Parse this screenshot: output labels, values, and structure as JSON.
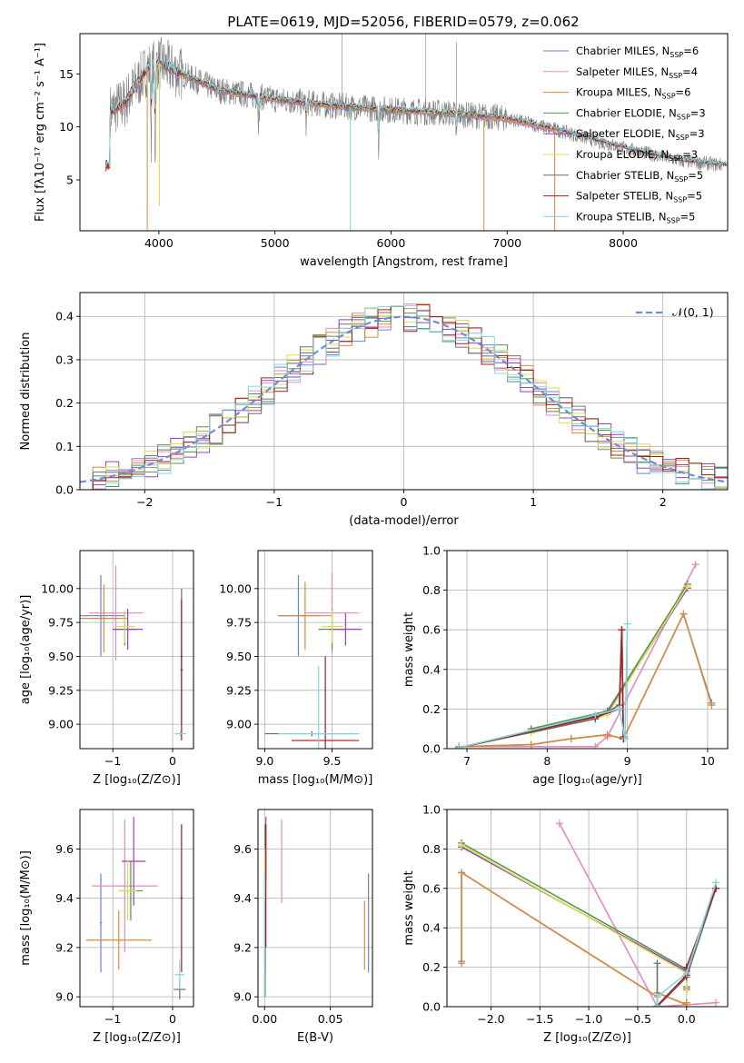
{
  "figure": {
    "title": "PLATE=0619, MJD=52056, FIBERID=0579, z=0.062"
  },
  "models": [
    {
      "name": "Chabrier MILES, N_SSP=6",
      "label_main": "Chabrier MILES, N",
      "label_sub": "SSP",
      "label_tail": "=6",
      "color": "#6b83cc"
    },
    {
      "name": "Salpeter MILES, N_SSP=4",
      "label_main": "Salpeter MILES, N",
      "label_sub": "SSP",
      "label_tail": "=4",
      "color": "#e58ac1"
    },
    {
      "name": "Kroupa MILES, N_SSP=6",
      "label_main": "Kroupa MILES, N",
      "label_sub": "SSP",
      "label_tail": "=6",
      "color": "#d98c3a"
    },
    {
      "name": "Chabrier ELODIE, N_SSP=3",
      "label_main": "Chabrier ELODIE, N",
      "label_sub": "SSP",
      "label_tail": "=3",
      "color": "#4f9a4a"
    },
    {
      "name": "Salpeter ELODIE, N_SSP=3",
      "label_main": "Salpeter ELODIE, N",
      "label_sub": "SSP",
      "label_tail": "=3",
      "color": "#9b3fc0"
    },
    {
      "name": "Kroupa ELODIE, N_SSP=3",
      "label_main": "Kroupa ELODIE, N",
      "label_sub": "SSP",
      "label_tail": "=3",
      "color": "#d6e34a"
    },
    {
      "name": "Chabrier STELIB, N_SSP=5",
      "label_main": "Chabrier STELIB, N",
      "label_sub": "SSP",
      "label_tail": "=5",
      "color": "#6e6e6e"
    },
    {
      "name": "Salpeter STELIB, N_SSP=5",
      "label_main": "Salpeter STELIB, N",
      "label_sub": "SSP",
      "label_tail": "=5",
      "color": "#a81c1c"
    },
    {
      "name": "Kroupa STELIB, N_SSP=5",
      "label_main": "Kroupa STELIB, N",
      "label_sub": "SSP",
      "label_tail": "=5",
      "color": "#7fd8df"
    }
  ],
  "chart_data": [
    {
      "id": "spectrum",
      "type": "line",
      "xlabel": "wavelength [Angstrom, rest frame]",
      "ylabel": "Flux [fλ10⁻¹⁷ erg cm⁻² s⁻¹ A⁻¹]",
      "xlim": [
        3320,
        8900
      ],
      "ylim": [
        0.2,
        18.8
      ],
      "xticks": [
        4000,
        5000,
        6000,
        7000,
        8000
      ],
      "yticks": [
        5,
        10,
        15
      ],
      "grid": false,
      "legend": "top-right",
      "data_color": "#808080",
      "continuum_knots": [
        [
          3580,
          11.5
        ],
        [
          3700,
          12.2
        ],
        [
          3900,
          15.5
        ],
        [
          4000,
          16.0
        ],
        [
          4200,
          15.0
        ],
        [
          4500,
          13.5
        ],
        [
          5000,
          12.6
        ],
        [
          5500,
          12.0
        ],
        [
          6000,
          11.6
        ],
        [
          6500,
          11.3
        ],
        [
          7000,
          10.8
        ],
        [
          7400,
          9.8
        ],
        [
          8000,
          8.0
        ],
        [
          8500,
          6.8
        ],
        [
          8850,
          6.4
        ]
      ],
      "absorption_features": [
        [
          3934,
          6.5
        ],
        [
          3968,
          8.0
        ],
        [
          4861,
          3.0
        ],
        [
          5270,
          2.0
        ],
        [
          5893,
          3.5
        ],
        [
          6563,
          2.5
        ]
      ],
      "model_coverage": [
        {
          "x_range": [
            3540,
            7410
          ]
        },
        {
          "x_range": [
            3540,
            7410
          ]
        },
        {
          "x_range": [
            3540,
            7410
          ]
        },
        {
          "x_range": [
            4000,
            6800
          ]
        },
        {
          "x_range": [
            4000,
            6800
          ]
        },
        {
          "x_range": [
            4000,
            6800
          ]
        },
        {
          "x_range": [
            3540,
            8900
          ]
        },
        {
          "x_range": [
            3540,
            8900
          ]
        },
        {
          "x_range": [
            3540,
            8900
          ]
        }
      ],
      "model_spikes": [
        {
          "x": 3900,
          "y_low": 0.2,
          "series": 2
        },
        {
          "x": 4005,
          "y_low": 2.5,
          "series": 5
        },
        {
          "x": 5650,
          "y_low": 0.2,
          "series": 8
        },
        {
          "x": 6800,
          "y_low": 0.2,
          "series": 2
        },
        {
          "x": 7410,
          "y_low": 0.2,
          "series": 2
        }
      ]
    },
    {
      "id": "residual-histogram",
      "type": "histogram",
      "xlabel": "(data-model)/error",
      "ylabel": "Normed distribution",
      "xlim": [
        -2.5,
        2.5
      ],
      "ylim": [
        0,
        0.455
      ],
      "xticks": [
        -2,
        -1,
        0,
        1,
        2
      ],
      "yticks": [
        0.0,
        0.1,
        0.2,
        0.3,
        0.4
      ],
      "grid": true,
      "legend": "top-right",
      "reference_curve": {
        "label": "𝒩(0, 1)",
        "mean": 0,
        "sigma": 1,
        "color": "#6a8fd6",
        "dashed": true
      },
      "bin_width": 0.1
    },
    {
      "id": "age-vs-Z",
      "type": "errorbar",
      "xlabel": "Z [log₁₀(Z/Z⊙)]",
      "ylabel": "age  [log₁₀(age/yr)]",
      "xlim": [
        -1.55,
        0.35
      ],
      "ylim": [
        8.82,
        10.28
      ],
      "xticks": [
        -1,
        0
      ],
      "yticks": [
        9.0,
        9.25,
        9.5,
        9.75,
        10.0
      ],
      "grid": true,
      "points": [
        {
          "series": 0,
          "x": -1.2,
          "y": 9.8,
          "xerr": 0.4,
          "yerr": 0.3
        },
        {
          "series": 1,
          "x": -0.95,
          "y": 9.82,
          "xerr": 0.45,
          "yerr": 0.35
        },
        {
          "series": 2,
          "x": -1.15,
          "y": 9.78,
          "xerr": 0.4,
          "yerr": 0.25
        },
        {
          "series": 3,
          "x": -0.8,
          "y": 9.7,
          "xerr": 0.2,
          "yerr": 0.12
        },
        {
          "series": 4,
          "x": -0.75,
          "y": 9.7,
          "xerr": 0.25,
          "yerr": 0.15
        },
        {
          "series": 5,
          "x": -0.8,
          "y": 9.72,
          "xerr": 0.18,
          "yerr": 0.12
        },
        {
          "series": 6,
          "x": 0.15,
          "y": 9.5,
          "xerr": 0.02,
          "yerr": 0.5
        },
        {
          "series": 7,
          "x": 0.15,
          "y": 9.4,
          "xerr": 0.02,
          "yerr": 0.52
        },
        {
          "series": 8,
          "x": 0.13,
          "y": 8.93,
          "xerr": 0.1,
          "yerr": 0.02
        }
      ]
    },
    {
      "id": "age-vs-mass",
      "type": "errorbar",
      "xlabel": "mass [log₁₀(M/M⊙)]",
      "ylabel": "",
      "xlim": [
        8.95,
        9.8
      ],
      "ylim": [
        8.82,
        10.28
      ],
      "xticks": [
        9.0,
        9.5
      ],
      "yticks": [
        9.0,
        9.25,
        9.5,
        9.75,
        10.0
      ],
      "grid": true,
      "points": [
        {
          "series": 0,
          "x": 9.25,
          "y": 9.8,
          "xerr": 0.15,
          "yerr": 0.3
        },
        {
          "series": 1,
          "x": 9.5,
          "y": 9.82,
          "xerr": 0.2,
          "yerr": 0.3
        },
        {
          "series": 2,
          "x": 9.3,
          "y": 9.8,
          "xerr": 0.2,
          "yerr": 0.25
        },
        {
          "series": 3,
          "x": 9.5,
          "y": 9.7,
          "xerr": 0.1,
          "yerr": 0.15
        },
        {
          "series": 4,
          "x": 9.6,
          "y": 9.7,
          "xerr": 0.12,
          "yerr": 0.12
        },
        {
          "series": 5,
          "x": 9.5,
          "y": 9.72,
          "xerr": 0.08,
          "yerr": 0.12
        },
        {
          "series": 6,
          "x": 9.35,
          "y": 8.93,
          "xerr": 0.35,
          "yerr": 0.02
        },
        {
          "series": 7,
          "x": 9.45,
          "y": 8.88,
          "xerr": 0.25,
          "yerr": 0.62
        },
        {
          "series": 8,
          "x": 9.4,
          "y": 8.93,
          "xerr": 0.3,
          "yerr": 0.5
        }
      ]
    },
    {
      "id": "weight-vs-age",
      "type": "line",
      "xlabel": "age  [log₁₀(age/yr)]",
      "ylabel": "mass weight",
      "xlim": [
        6.75,
        10.25
      ],
      "ylim": [
        0,
        1.0
      ],
      "xticks": [
        7,
        8,
        9,
        10
      ],
      "yticks": [
        0.0,
        0.2,
        0.4,
        0.6,
        0.8,
        1.0
      ],
      "grid": true,
      "marker": "+",
      "series": [
        {
          "series": 0,
          "x": [
            6.9,
            7.8,
            8.3,
            8.75,
            8.95,
            9.7,
            10.05
          ],
          "y": [
            0.01,
            0.02,
            0.05,
            0.07,
            0.05,
            0.68,
            0.23
          ]
        },
        {
          "series": 1,
          "x": [
            6.9,
            8.6,
            8.75,
            9.85
          ],
          "y": [
            0.01,
            0.01,
            0.06,
            0.93
          ]
        },
        {
          "series": 2,
          "x": [
            6.9,
            7.8,
            8.3,
            8.75,
            8.95,
            9.7,
            10.05
          ],
          "y": [
            0.01,
            0.02,
            0.05,
            0.07,
            0.05,
            0.68,
            0.22
          ]
        },
        {
          "series": 3,
          "x": [
            7.8,
            8.75,
            9.75
          ],
          "y": [
            0.1,
            0.19,
            0.83
          ]
        },
        {
          "series": 4,
          "x": [
            7.8,
            8.75,
            9.75
          ],
          "y": [
            0.09,
            0.18,
            0.81
          ]
        },
        {
          "series": 5,
          "x": [
            7.8,
            8.75,
            9.75
          ],
          "y": [
            0.08,
            0.17,
            0.82
          ]
        },
        {
          "series": 6,
          "x": [
            6.9,
            8.6,
            8.9,
            8.93,
            8.95
          ],
          "y": [
            0.005,
            0.15,
            0.22,
            0.6,
            0.06
          ]
        },
        {
          "series": 7,
          "x": [
            6.9,
            8.6,
            8.9,
            8.93,
            8.95
          ],
          "y": [
            0.005,
            0.16,
            0.2,
            0.6,
            0.05
          ]
        },
        {
          "series": 8,
          "x": [
            6.9,
            8.6,
            8.9,
            8.97,
            9.0
          ],
          "y": [
            0.005,
            0.17,
            0.2,
            0.05,
            0.63
          ]
        }
      ]
    },
    {
      "id": "mass-vs-Z",
      "type": "errorbar",
      "xlabel": "Z [log₁₀(Z/Z⊙)]",
      "ylabel": "mass [log₁₀(M/M⊙)]",
      "xlim": [
        -1.55,
        0.35
      ],
      "ylim": [
        8.96,
        9.76
      ],
      "xticks": [
        -1,
        0
      ],
      "yticks": [
        9.0,
        9.2,
        9.4,
        9.6
      ],
      "grid": true,
      "points": [
        {
          "series": 0,
          "x": -1.2,
          "y": 9.3,
          "xerr": 0.02,
          "yerr": 0.2
        },
        {
          "series": 1,
          "x": -0.8,
          "y": 9.45,
          "xerr": 0.55,
          "yerr": 0.27
        },
        {
          "series": 2,
          "x": -0.9,
          "y": 9.23,
          "xerr": 0.55,
          "yerr": 0.12
        },
        {
          "series": 3,
          "x": -0.7,
          "y": 9.43,
          "xerr": 0.2,
          "yerr": 0.12
        },
        {
          "series": 4,
          "x": -0.65,
          "y": 9.55,
          "xerr": 0.2,
          "yerr": 0.18
        },
        {
          "series": 5,
          "x": -0.75,
          "y": 9.43,
          "xerr": 0.15,
          "yerr": 0.12
        },
        {
          "series": 6,
          "x": 0.12,
          "y": 9.03,
          "xerr": 0.1,
          "yerr": 0.04
        },
        {
          "series": 7,
          "x": 0.15,
          "y": 9.4,
          "xerr": 0.02,
          "yerr": 0.3
        },
        {
          "series": 8,
          "x": 0.12,
          "y": 9.09,
          "xerr": 0.08,
          "yerr": 0.06
        }
      ]
    },
    {
      "id": "mass-vs-ebv",
      "type": "errorbar",
      "xlabel": "E(B-V)",
      "ylabel": "",
      "xlim": [
        -0.005,
        0.082
      ],
      "ylim": [
        8.96,
        9.76
      ],
      "xticks": [
        0.0,
        0.05
      ],
      "yticks": [
        9.0,
        9.2,
        9.4,
        9.6
      ],
      "grid": true,
      "points": [
        {
          "series": 0,
          "x": 0.079,
          "y": 9.3,
          "xerr": 0,
          "yerr": 0.2
        },
        {
          "series": 1,
          "x": 0.013,
          "y": 9.55,
          "xerr": 0,
          "yerr": 0.17
        },
        {
          "series": 2,
          "x": 0.076,
          "y": 9.25,
          "xerr": 0,
          "yerr": 0.14
        },
        {
          "series": 3,
          "x": 0.0005,
          "y": 9.4,
          "xerr": 0,
          "yerr": 0.3
        },
        {
          "series": 4,
          "x": 0.001,
          "y": 9.6,
          "xerr": 0,
          "yerr": 0.13
        },
        {
          "series": 5,
          "x": 0.0005,
          "y": 9.35,
          "xerr": 0,
          "yerr": 0.25
        },
        {
          "series": 6,
          "x": 0.0005,
          "y": 9.2,
          "xerr": 0,
          "yerr": 0.2
        },
        {
          "series": 7,
          "x": 0.001,
          "y": 9.45,
          "xerr": 0,
          "yerr": 0.25
        },
        {
          "series": 8,
          "x": 0.0,
          "y": 9.25,
          "xerr": 0,
          "yerr": 0.25
        }
      ]
    },
    {
      "id": "weight-vs-Z",
      "type": "line",
      "xlabel": "Z [log₁₀(Z/Z⊙)]",
      "ylabel": "mass weight",
      "xlim": [
        -2.45,
        0.42
      ],
      "ylim": [
        0,
        1.0
      ],
      "xticks": [
        -2.0,
        -1.5,
        -1.0,
        -0.5,
        0.0
      ],
      "yticks": [
        0.0,
        0.2,
        0.4,
        0.6,
        0.8,
        1.0
      ],
      "grid": true,
      "marker": "+",
      "series": [
        {
          "series": 0,
          "x": [
            -2.3,
            -2.3,
            -0.3,
            -0.3,
            0.0,
            0.0
          ],
          "y": [
            0.23,
            0.68,
            0.05,
            0.07,
            0.01,
            0.02
          ]
        },
        {
          "series": 1,
          "x": [
            -1.3,
            -0.3,
            0.3
          ],
          "y": [
            0.93,
            0.0,
            0.02
          ]
        },
        {
          "series": 2,
          "x": [
            -2.3,
            -2.3,
            -0.3,
            -0.3,
            0.0,
            0.0
          ],
          "y": [
            0.22,
            0.68,
            0.05,
            0.07,
            0.01,
            0.02
          ]
        },
        {
          "series": 3,
          "x": [
            -2.3,
            0.0,
            0.0
          ],
          "y": [
            0.83,
            0.19,
            0.1
          ]
        },
        {
          "series": 4,
          "x": [
            -2.3,
            0.0,
            0.0
          ],
          "y": [
            0.81,
            0.18,
            0.09
          ]
        },
        {
          "series": 5,
          "x": [
            -2.3,
            0.0,
            0.0
          ],
          "y": [
            0.82,
            0.17,
            0.08
          ]
        },
        {
          "series": 6,
          "x": [
            -0.3,
            -0.3,
            0.0,
            0.3
          ],
          "y": [
            0.22,
            0.0,
            0.15,
            0.6
          ]
        },
        {
          "series": 7,
          "x": [
            -0.3,
            0.0,
            0.0,
            0.3
          ],
          "y": [
            0.005,
            0.16,
            0.2,
            0.6
          ]
        },
        {
          "series": 8,
          "x": [
            -0.3,
            -0.3,
            0.0,
            0.3
          ],
          "y": [
            0.005,
            0.05,
            0.17,
            0.63
          ]
        }
      ]
    }
  ]
}
